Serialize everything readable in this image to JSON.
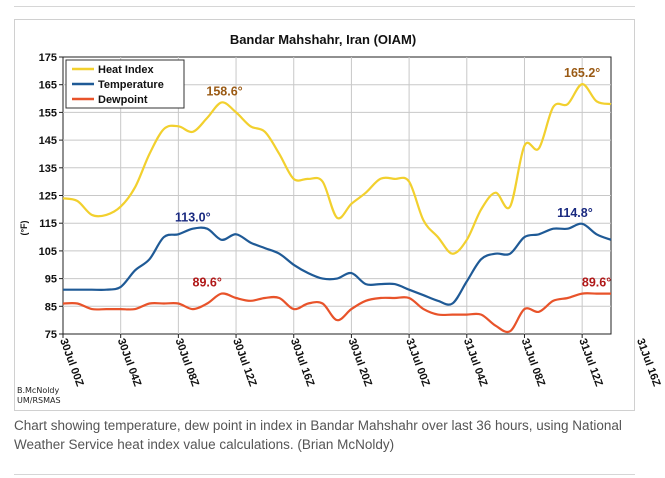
{
  "figure": {
    "caption": "Chart showing temperature, dew point in index in Bandar Mahshahr over last 36 hours, using National Weather Service heat index value calculations. (Brian McNoldy)",
    "credit_line1": "B.McNoldy",
    "credit_line2": "UM/RSMAS"
  },
  "chart_data": {
    "type": "line",
    "title": "Bandar Mahshahr, Iran (OIAM)",
    "ylabel": "(°F)",
    "xlabel": "",
    "ylim": [
      75,
      175
    ],
    "yticks": [
      75,
      85,
      95,
      105,
      115,
      125,
      135,
      145,
      155,
      165,
      175
    ],
    "xlim": [
      0,
      38
    ],
    "xticks": [
      {
        "x": 0,
        "label": "30Jul 00Z"
      },
      {
        "x": 4,
        "label": "30Jul 04Z"
      },
      {
        "x": 8,
        "label": "30Jul 08Z"
      },
      {
        "x": 12,
        "label": "30Jul 12Z"
      },
      {
        "x": 16,
        "label": "30Jul 16Z"
      },
      {
        "x": 20,
        "label": "30Jul 20Z"
      },
      {
        "x": 24,
        "label": "31Jul 00Z"
      },
      {
        "x": 28,
        "label": "31Jul 04Z"
      },
      {
        "x": 32,
        "label": "31Jul 08Z"
      },
      {
        "x": 36,
        "label": "31Jul 12Z"
      },
      {
        "x": 40,
        "label": "31Jul 16Z"
      }
    ],
    "grid": true,
    "legend_position": "top-left",
    "x": [
      0,
      1,
      2,
      3,
      4,
      5,
      6,
      7,
      8,
      9,
      10,
      11,
      12,
      13,
      14,
      15,
      16,
      17,
      18,
      19,
      20,
      21,
      22,
      23,
      24,
      25,
      26,
      27,
      28,
      29,
      30,
      31,
      32,
      33,
      34,
      35,
      36,
      37,
      38
    ],
    "series": [
      {
        "name": "Heat Index",
        "color": "#f2d02e",
        "values": [
          124,
          123,
          118,
          118,
          121,
          128,
          140,
          149,
          150,
          148,
          153,
          158.6,
          155,
          150,
          148,
          140,
          131,
          131,
          130,
          117,
          122,
          126,
          131,
          131,
          130,
          116,
          110,
          104,
          109,
          120,
          126,
          121,
          143,
          142,
          157,
          158,
          165.2,
          159,
          158
        ]
      },
      {
        "name": "Temperature",
        "color": "#1f5a96",
        "values": [
          91,
          91,
          91,
          91,
          92,
          98,
          102,
          110,
          111,
          113,
          113,
          109,
          111,
          108,
          106,
          104,
          100,
          97,
          95,
          95,
          97,
          93,
          93,
          93,
          91,
          89,
          87,
          86,
          94,
          102,
          104,
          104,
          110,
          111,
          113,
          113,
          114.8,
          111,
          109
        ]
      },
      {
        "name": "Dewpoint",
        "color": "#e8532a",
        "values": [
          86,
          86,
          84,
          84,
          84,
          84,
          86,
          86,
          86,
          84,
          86,
          89.6,
          88,
          87,
          88,
          88,
          84,
          86,
          86,
          80,
          84,
          87,
          88,
          88,
          88,
          84,
          82,
          82,
          82,
          82,
          78,
          76,
          84,
          83,
          87,
          88,
          89.6,
          89.6,
          89.6
        ]
      }
    ],
    "annotations": [
      {
        "text": "158.6°",
        "x": 11.2,
        "y": 158.6,
        "color": "#9a5a14"
      },
      {
        "text": "113.0°",
        "x": 9.0,
        "y": 113.0,
        "color": "#1a2a80"
      },
      {
        "text": "89.6°",
        "x": 10.0,
        "y": 89.6,
        "color": "#b01818"
      },
      {
        "text": "165.2°",
        "x": 36.0,
        "y": 165.2,
        "color": "#9a5a14"
      },
      {
        "text": "114.8°",
        "x": 35.5,
        "y": 114.8,
        "color": "#1a2a80"
      },
      {
        "text": "89.6°",
        "x": 37.0,
        "y": 89.6,
        "color": "#b01818"
      }
    ]
  }
}
